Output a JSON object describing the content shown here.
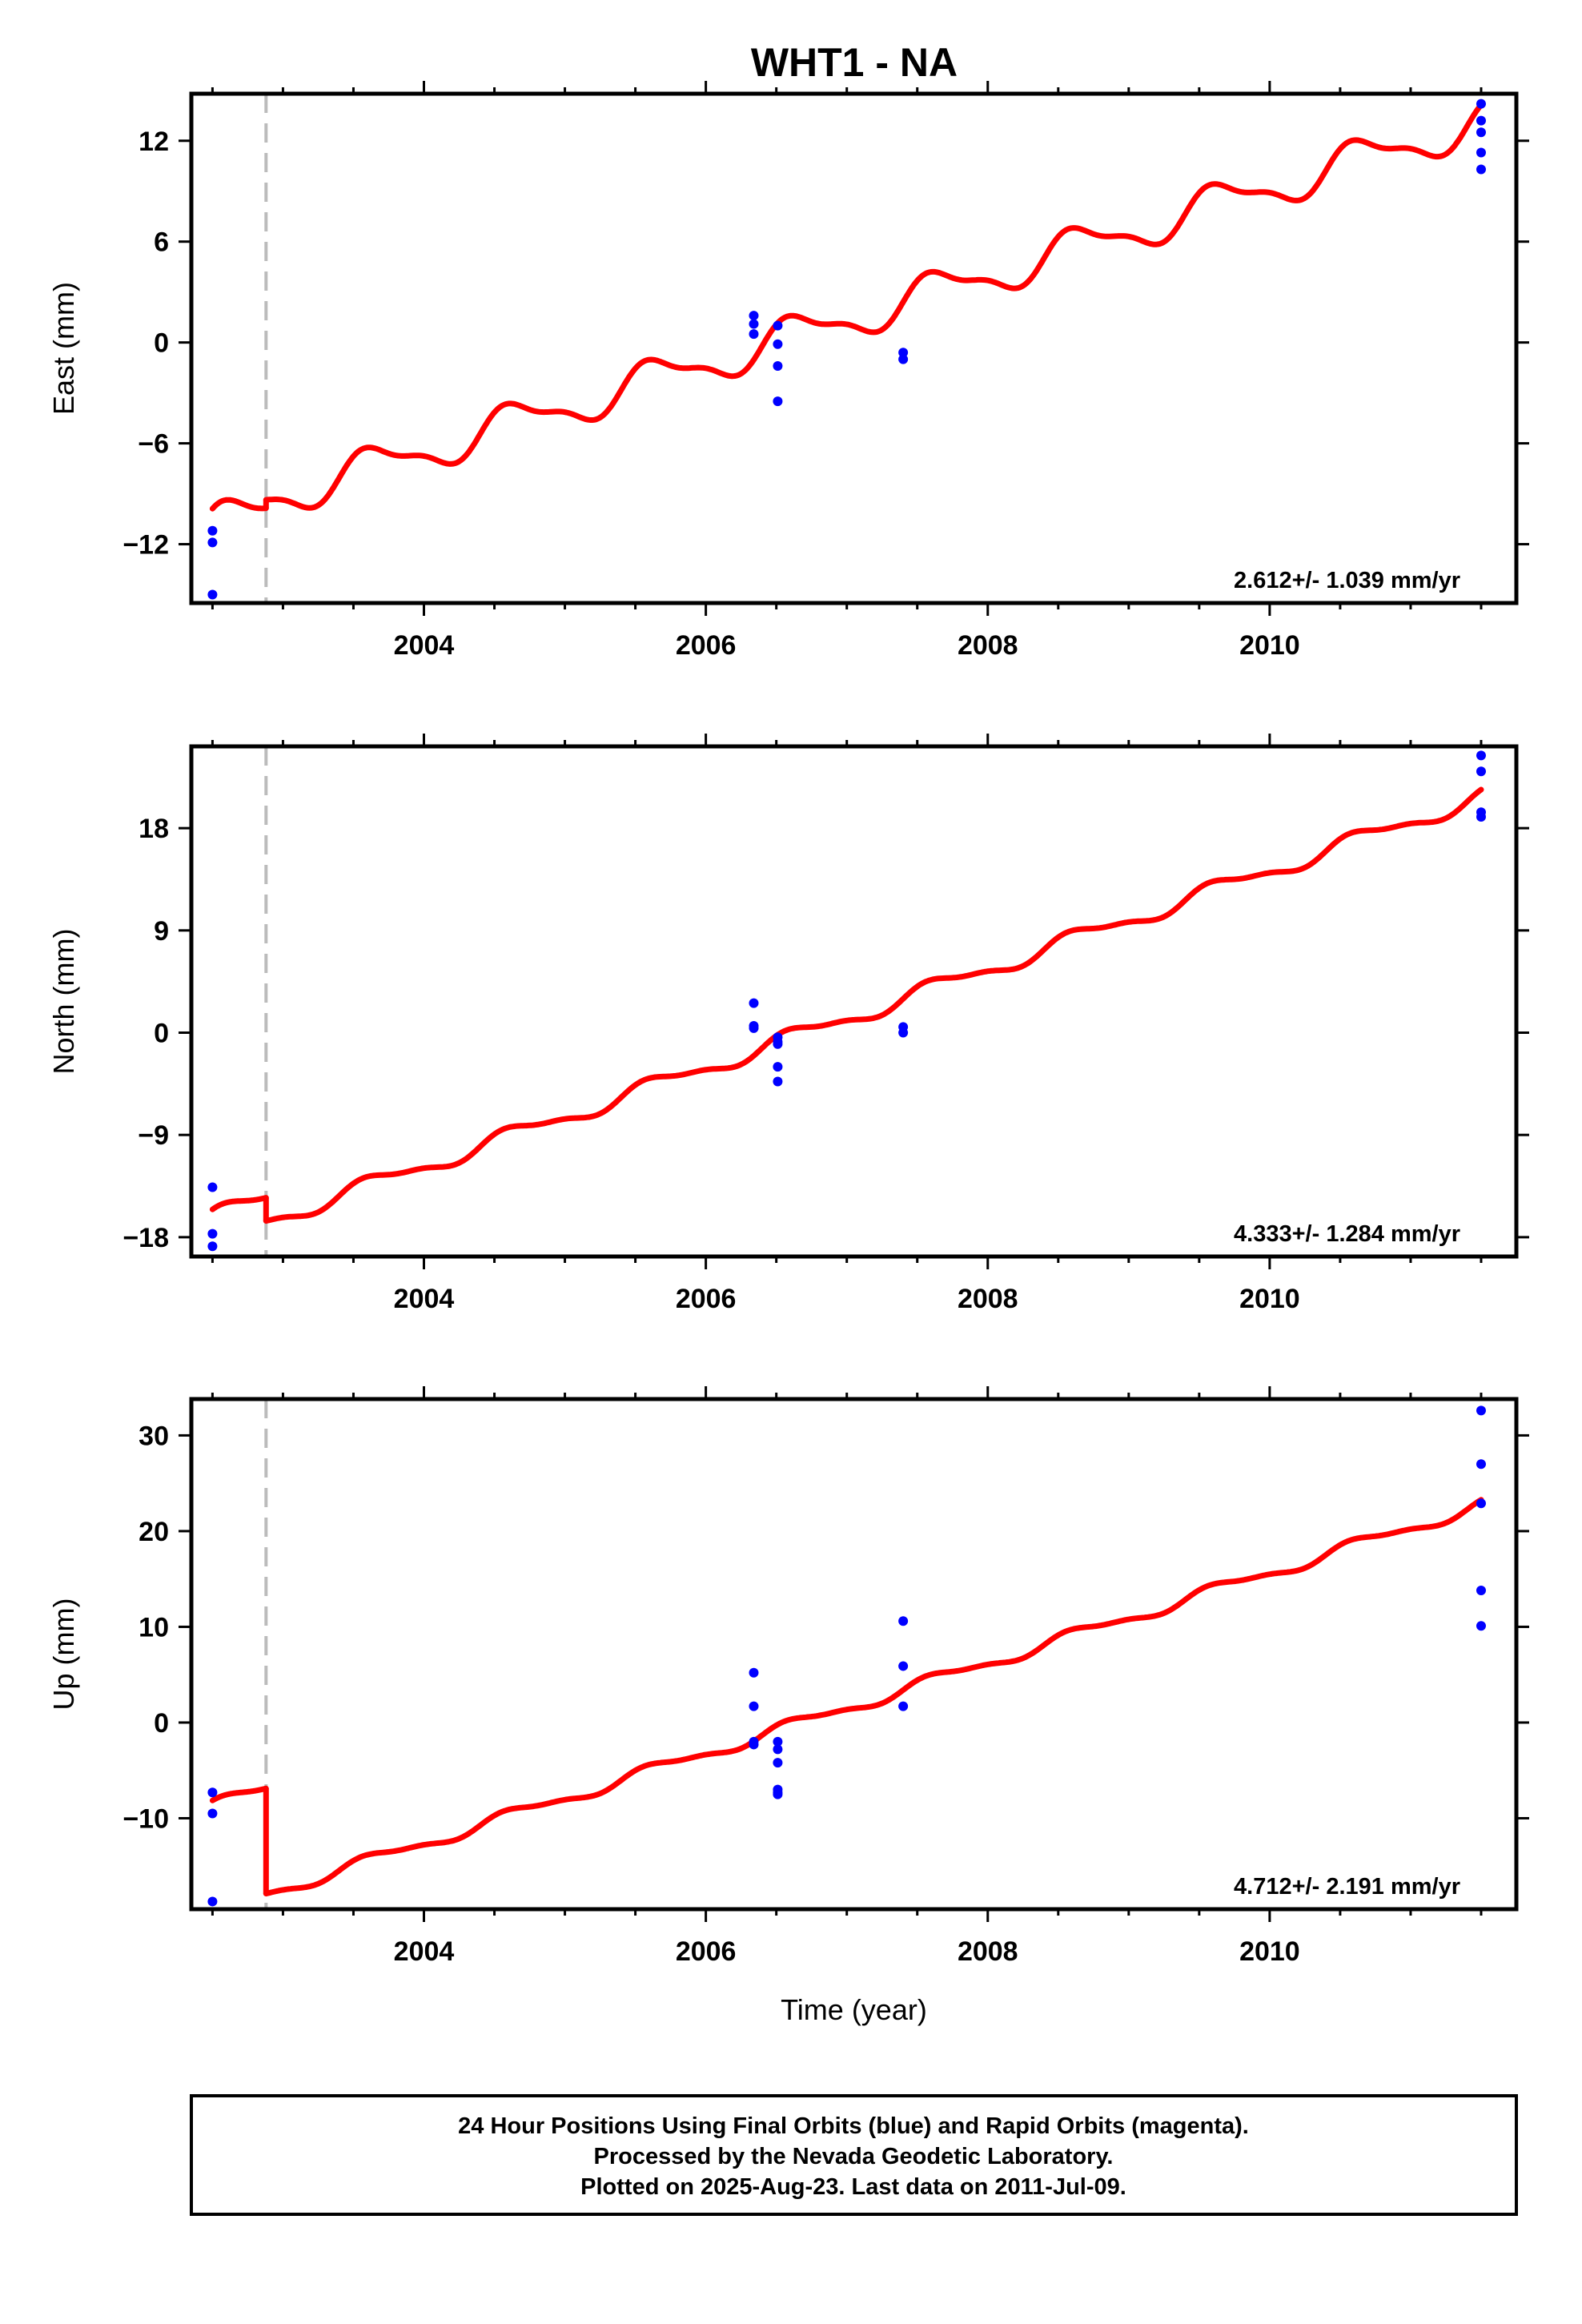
{
  "title": "WHT1 - NA",
  "footer": {
    "line1": "24 Hour Positions Using Final Orbits (blue) and Rapid Orbits (magenta).",
    "line2": "Processed by the Nevada Geodetic Laboratory.",
    "line3": "Plotted on 2025-Aug-23. Last data on 2011-Jul-09."
  },
  "colors": {
    "data_points": "#0000ff",
    "model_line": "#ff0000",
    "event_line": "#bbbbbb"
  },
  "chart_data": [
    {
      "type": "scatter",
      "ylabel": "East (mm)",
      "xlabel": "",
      "rate_label": "2.612+/- 1.039 mm/yr",
      "x_ticks": [
        2004,
        2006,
        2008,
        2010
      ],
      "y_ticks": [
        -12,
        -6,
        0,
        6,
        12
      ],
      "xlim": [
        2002.35,
        2011.75
      ],
      "ylim": [
        -15.5,
        14.8
      ],
      "event_line_x": 2002.88,
      "grid": false,
      "series": [
        {
          "kind": "points",
          "x": [
            2002.5,
            2002.5,
            2002.5,
            2006.34,
            2006.34,
            2006.34,
            2006.51,
            2006.51,
            2006.51,
            2006.51,
            2007.4,
            2007.4,
            2011.5,
            2011.5,
            2011.5,
            2011.5,
            2011.5
          ],
          "y": [
            -11.2,
            -11.9,
            -15.0,
            1.6,
            1.1,
            0.5,
            1.0,
            -0.1,
            -1.4,
            -3.5,
            -0.6,
            -1.0,
            14.2,
            13.2,
            12.5,
            11.3,
            10.3
          ]
        },
        {
          "kind": "model",
          "segments": [
            {
              "t0": 2002.5,
              "t1": 2002.88,
              "offset": -10.9,
              "rate": 2.612,
              "amp": 1.1,
              "phase": 0.1
            },
            {
              "t0": 2002.88,
              "t1": 2011.5,
              "offset": -9.4,
              "rate": 2.612,
              "amp": 1.1,
              "phase": 0.1
            }
          ]
        }
      ]
    },
    {
      "type": "scatter",
      "ylabel": "North (mm)",
      "xlabel": "",
      "rate_label": "4.333+/- 1.284 mm/yr",
      "x_ticks": [
        2004,
        2006,
        2008,
        2010
      ],
      "y_ticks": [
        -18,
        -9,
        0,
        9,
        18
      ],
      "xlim": [
        2002.35,
        2011.75
      ],
      "ylim": [
        -19.7,
        25.2
      ],
      "event_line_x": 2002.88,
      "grid": false,
      "series": [
        {
          "kind": "points",
          "x": [
            2002.5,
            2002.5,
            2002.5,
            2006.34,
            2006.34,
            2006.34,
            2006.51,
            2006.51,
            2006.51,
            2006.51,
            2006.51,
            2007.4,
            2007.4,
            2011.5,
            2011.5,
            2011.5,
            2011.5
          ],
          "y": [
            -13.6,
            -17.7,
            -18.8,
            2.6,
            0.6,
            0.4,
            -0.4,
            -0.8,
            -1.0,
            -3.0,
            -4.3,
            0.5,
            0.0,
            24.4,
            23.0,
            19.4,
            19.0
          ]
        },
        {
          "kind": "model",
          "segments": [
            {
              "t0": 2002.5,
              "t1": 2002.88,
              "offset": -16.2,
              "rate": 4.333,
              "amp": 0.7,
              "phase": 0.1
            },
            {
              "t0": 2002.88,
              "t1": 2011.5,
              "offset": -16.6,
              "rate": 4.333,
              "amp": 0.7,
              "phase": 0.1
            }
          ]
        }
      ]
    },
    {
      "type": "scatter",
      "ylabel": "Up (mm)",
      "xlabel": "Time (year)",
      "rate_label": "4.712+/- 2.191 mm/yr",
      "x_ticks": [
        2004,
        2006,
        2008,
        2010
      ],
      "y_ticks": [
        -10,
        0,
        10,
        20,
        30
      ],
      "xlim": [
        2002.35,
        2011.75
      ],
      "ylim": [
        -19.5,
        33.8
      ],
      "event_line_x": 2002.88,
      "grid": false,
      "series": [
        {
          "kind": "points",
          "x": [
            2002.5,
            2002.5,
            2002.5,
            2006.34,
            2006.34,
            2006.34,
            2006.34,
            2006.51,
            2006.51,
            2006.51,
            2006.51,
            2006.51,
            2006.51,
            2007.4,
            2007.4,
            2007.4,
            2011.5,
            2011.5,
            2011.5,
            2011.5,
            2011.5
          ],
          "y": [
            -7.3,
            -9.5,
            -18.7,
            5.2,
            1.7,
            -2.0,
            -2.3,
            -2.0,
            -2.8,
            -4.2,
            -7.0,
            -7.3,
            -7.5,
            10.6,
            5.9,
            1.7,
            32.6,
            27.0,
            22.9,
            13.8,
            10.1
          ]
        },
        {
          "kind": "model",
          "segments": [
            {
              "t0": 2002.5,
              "t1": 2002.88,
              "offset": -8.7,
              "rate": 4.712,
              "amp": 0.6,
              "phase": 0.1
            },
            {
              "t0": 2002.88,
              "t1": 2011.5,
              "offset": -17.9,
              "rate": 4.712,
              "amp": 0.6,
              "phase": 0.1
            }
          ]
        }
      ]
    }
  ]
}
